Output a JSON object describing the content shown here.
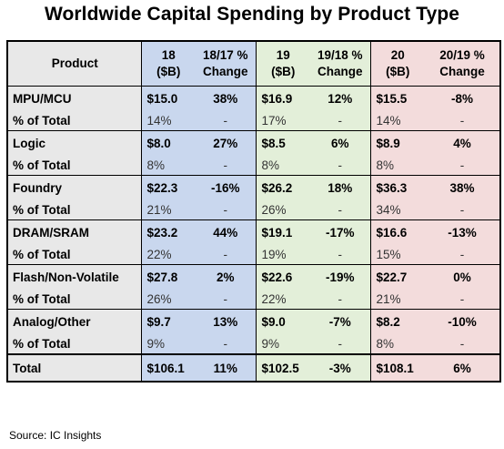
{
  "title": "Worldwide Capital Spending by Product Type",
  "source": "Source: IC Insights",
  "chart_data": {
    "type": "table",
    "title": "Worldwide Capital Spending by Product Type",
    "columns": [
      "Product",
      "18 ($B)",
      "18/17 % Change",
      "19 ($B)",
      "19/18 % Change",
      "20 ($B)",
      "20/19 % Change"
    ],
    "header": {
      "product": "Product",
      "y18_line1": "18",
      "y18_line2": "($B)",
      "c18_line1": "18/17 %",
      "c18_line2": "Change",
      "y19_line1": "19",
      "y19_line2": "($B)",
      "c19_line1": "19/18 %",
      "c19_line2": "Change",
      "y20_line1": "20",
      "y20_line2": "($B)",
      "c20_line1": "20/19 %",
      "c20_line2": "Change"
    },
    "rows": [
      {
        "product": "MPU/MCU",
        "y18": "$15.0",
        "c18": "38%",
        "y19": "$16.9",
        "c19": "12%",
        "y20": "$15.5",
        "c20": "-8%",
        "pct_label": "% of Total",
        "p18": "14%",
        "pc18": "-",
        "p19": "17%",
        "pc19": "-",
        "p20": "14%",
        "pc20": "-"
      },
      {
        "product": "Logic",
        "y18": "$8.0",
        "c18": "27%",
        "y19": "$8.5",
        "c19": "6%",
        "y20": "$8.9",
        "c20": "4%",
        "pct_label": "% of Total",
        "p18": "8%",
        "pc18": "-",
        "p19": "8%",
        "pc19": "-",
        "p20": "8%",
        "pc20": "-"
      },
      {
        "product": "Foundry",
        "y18": "$22.3",
        "c18": "-16%",
        "y19": "$26.2",
        "c19": "18%",
        "y20": "$36.3",
        "c20": "38%",
        "pct_label": "% of Total",
        "p18": "21%",
        "pc18": "-",
        "p19": "26%",
        "pc19": "-",
        "p20": "34%",
        "pc20": "-"
      },
      {
        "product": "DRAM/SRAM",
        "y18": "$23.2",
        "c18": "44%",
        "y19": "$19.1",
        "c19": "-17%",
        "y20": "$16.6",
        "c20": "-13%",
        "pct_label": "% of Total",
        "p18": "22%",
        "pc18": "-",
        "p19": "19%",
        "pc19": "-",
        "p20": "15%",
        "pc20": "-"
      },
      {
        "product": "Flash/Non-Volatile",
        "y18": "$27.8",
        "c18": "2%",
        "y19": "$22.6",
        "c19": "-19%",
        "y20": "$22.7",
        "c20": "0%",
        "pct_label": "% of Total",
        "p18": "26%",
        "pc18": "-",
        "p19": "22%",
        "pc19": "-",
        "p20": "21%",
        "pc20": "-"
      },
      {
        "product": "Analog/Other",
        "y18": "$9.7",
        "c18": "13%",
        "y19": "$9.0",
        "c19": "-7%",
        "y20": "$8.2",
        "c20": "-10%",
        "pct_label": "% of Total",
        "p18": "9%",
        "pc18": "-",
        "p19": "9%",
        "pc19": "-",
        "p20": "8%",
        "pc20": "-"
      }
    ],
    "total": {
      "product": "Total",
      "y18": "$106.1",
      "c18": "11%",
      "y19": "$102.5",
      "c19": "-3%",
      "y20": "$108.1",
      "c20": "6%"
    },
    "colors": {
      "product_col": "#e8e8e8",
      "y18": "#c9d7ee",
      "y19": "#e3efd9",
      "y20": "#f3dcdc"
    }
  }
}
